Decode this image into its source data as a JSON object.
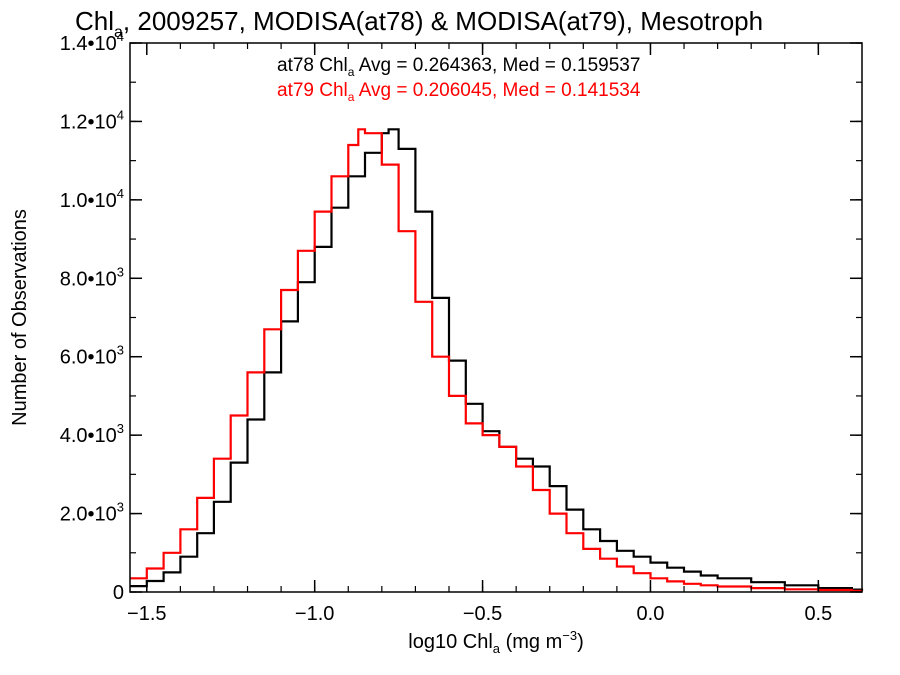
{
  "chart_data": {
    "type": "line",
    "title": {
      "pre": "Chl",
      "sub": "a",
      "post": ", 2009257, MODISA(at78) & MODISA(at79), Mesotroph"
    },
    "xlabel": {
      "pre": "log10 Chl",
      "sub": "a",
      "mid": " (mg m",
      "sup": "-3",
      "post": ")"
    },
    "ylabel": "Number of Observations",
    "xlim": [
      -1.55,
      0.63
    ],
    "ylim": [
      0,
      14000
    ],
    "x_ticks": [
      {
        "value": -1.5,
        "label": "-1.5"
      },
      {
        "value": -1.0,
        "label": "-1.0"
      },
      {
        "value": -0.5,
        "label": "-0.5"
      },
      {
        "value": 0.0,
        "label": "0.0"
      },
      {
        "value": 0.5,
        "label": "0.5"
      }
    ],
    "y_ticks": [
      {
        "value": 0,
        "base": "0",
        "exp": ""
      },
      {
        "value": 2000,
        "base": "2.0•10",
        "exp": "3"
      },
      {
        "value": 4000,
        "base": "4.0•10",
        "exp": "3"
      },
      {
        "value": 6000,
        "base": "6.0•10",
        "exp": "3"
      },
      {
        "value": 8000,
        "base": "8.0•10",
        "exp": "3"
      },
      {
        "value": 10000,
        "base": "1.0•10",
        "exp": "4"
      },
      {
        "value": 12000,
        "base": "1.2•10",
        "exp": "4"
      },
      {
        "value": 14000,
        "base": "1.4•10",
        "exp": "4"
      }
    ],
    "grid": false,
    "series": [
      {
        "name": "at78",
        "color": "#000000",
        "annotation": {
          "pre": "at78 Chl",
          "sub": "a",
          "post": " Avg = 0.264363, Med = 0.159537"
        },
        "x": [
          -1.55,
          -1.5,
          -1.45,
          -1.4,
          -1.35,
          -1.3,
          -1.25,
          -1.2,
          -1.15,
          -1.1,
          -1.05,
          -1.0,
          -0.95,
          -0.9,
          -0.85,
          -0.8,
          -0.78,
          -0.75,
          -0.7,
          -0.65,
          -0.6,
          -0.55,
          -0.5,
          -0.45,
          -0.4,
          -0.35,
          -0.3,
          -0.25,
          -0.2,
          -0.15,
          -0.1,
          -0.05,
          0.0,
          0.05,
          0.1,
          0.15,
          0.2,
          0.3,
          0.4,
          0.5,
          0.6,
          0.63
        ],
        "y": [
          150,
          280,
          500,
          900,
          1500,
          2300,
          3300,
          4400,
          5600,
          6900,
          7900,
          8800,
          9800,
          10600,
          11200,
          11700,
          11800,
          11300,
          9700,
          7500,
          5900,
          4800,
          4100,
          3700,
          3400,
          3200,
          2700,
          2100,
          1600,
          1300,
          1050,
          900,
          750,
          620,
          520,
          420,
          350,
          250,
          170,
          100,
          60,
          40
        ]
      },
      {
        "name": "at79",
        "color": "#ff0000",
        "annotation": {
          "pre": "at79 Chl",
          "sub": "a",
          "post": " Avg = 0.206045, Med = 0.141534"
        },
        "x": [
          -1.55,
          -1.5,
          -1.45,
          -1.4,
          -1.35,
          -1.3,
          -1.25,
          -1.2,
          -1.15,
          -1.1,
          -1.05,
          -1.0,
          -0.95,
          -0.9,
          -0.87,
          -0.85,
          -0.8,
          -0.75,
          -0.7,
          -0.65,
          -0.6,
          -0.55,
          -0.5,
          -0.45,
          -0.4,
          -0.35,
          -0.3,
          -0.25,
          -0.2,
          -0.15,
          -0.1,
          -0.05,
          0.0,
          0.05,
          0.1,
          0.15,
          0.2,
          0.3,
          0.4,
          0.5,
          0.6,
          0.63
        ],
        "y": [
          350,
          600,
          1000,
          1600,
          2400,
          3400,
          4500,
          5600,
          6700,
          7700,
          8700,
          9700,
          10600,
          11400,
          11800,
          11700,
          10900,
          9200,
          7400,
          6000,
          5000,
          4300,
          4000,
          3700,
          3200,
          2600,
          2000,
          1500,
          1100,
          850,
          650,
          480,
          350,
          270,
          210,
          170,
          140,
          100,
          70,
          50,
          30,
          20
        ]
      }
    ]
  }
}
